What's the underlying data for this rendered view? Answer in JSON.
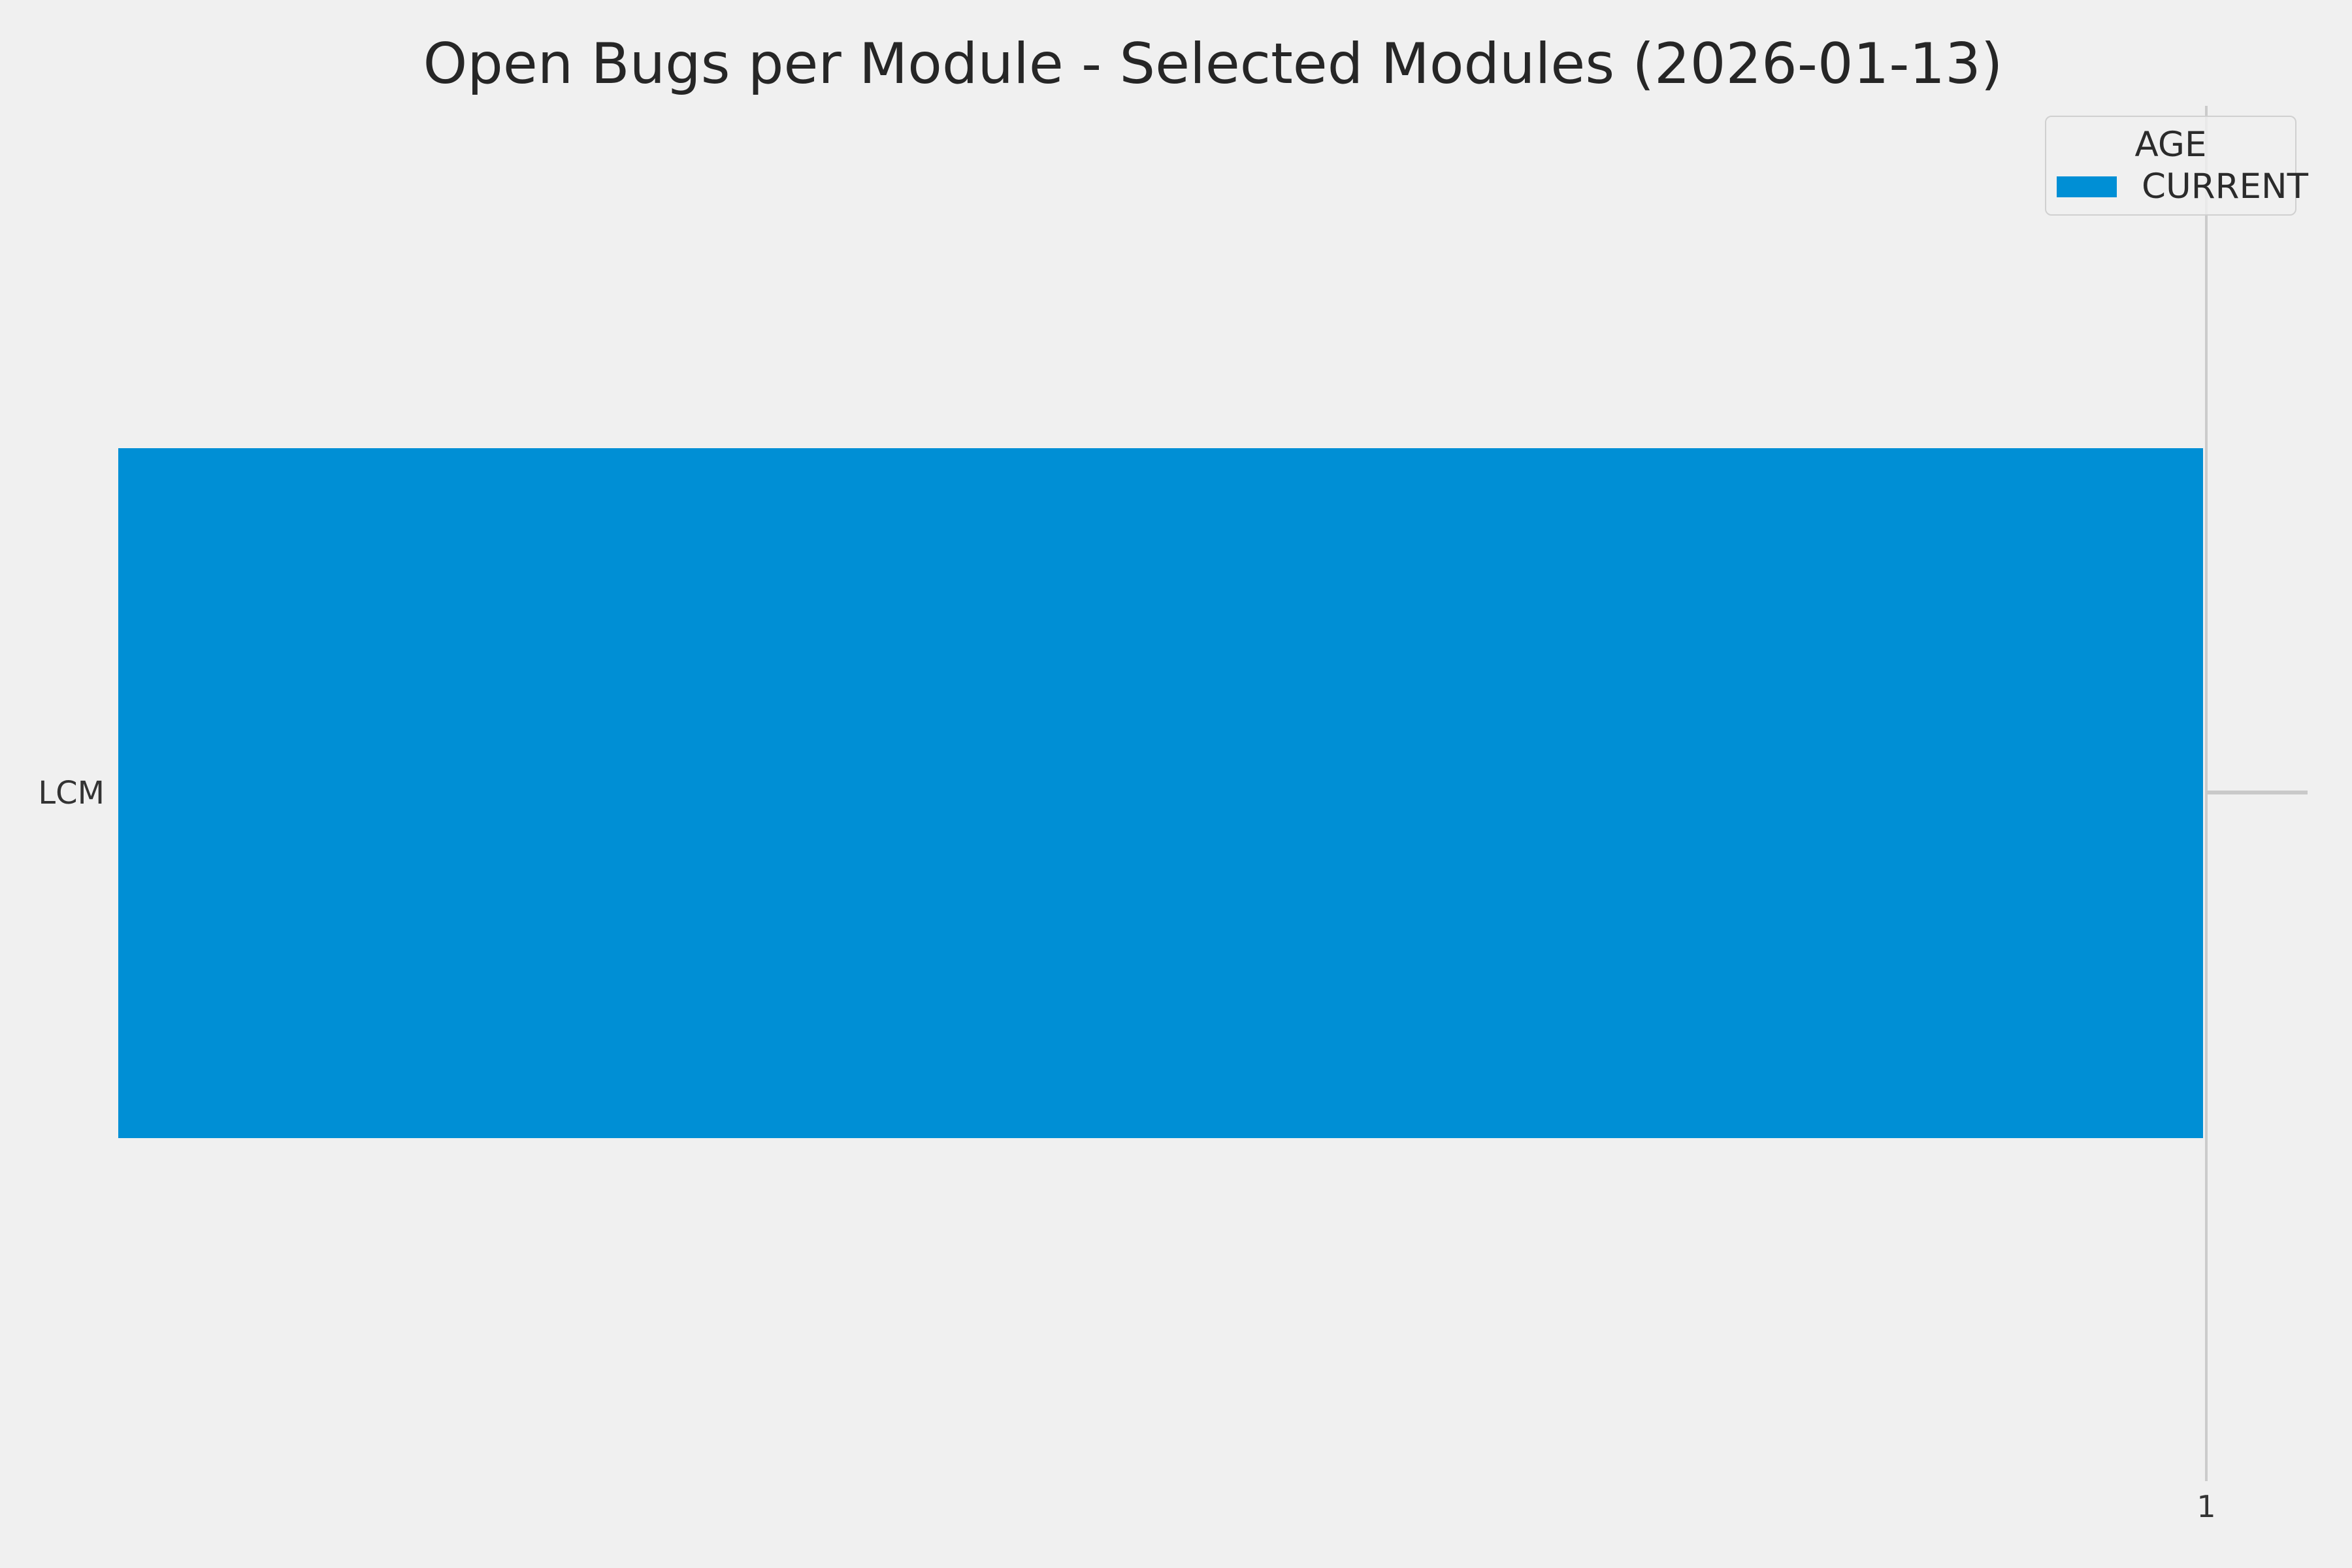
{
  "chart_data": {
    "type": "bar",
    "orientation": "horizontal",
    "title": "Open Bugs per Module - Selected Modules (2026-01-13)",
    "categories": [
      "LCM"
    ],
    "series": [
      {
        "name": "CURRENT",
        "values": [
          1
        ]
      }
    ],
    "xlabel": "",
    "ylabel": "",
    "xlim": [
      0,
      1.05
    ],
    "x_tick_labels": [
      "1"
    ],
    "x_tick_values": [
      1
    ],
    "grid": true,
    "legend": {
      "title": "AGE",
      "position": "upper-right",
      "entries": [
        {
          "label": "CURRENT",
          "color": "#008fd5"
        }
      ]
    },
    "colors": {
      "background": "#f0f0f0",
      "gridline": "#cbcbcb",
      "bar": "#008fd5",
      "title_text": "#262626",
      "tick_text": "#333333"
    }
  }
}
